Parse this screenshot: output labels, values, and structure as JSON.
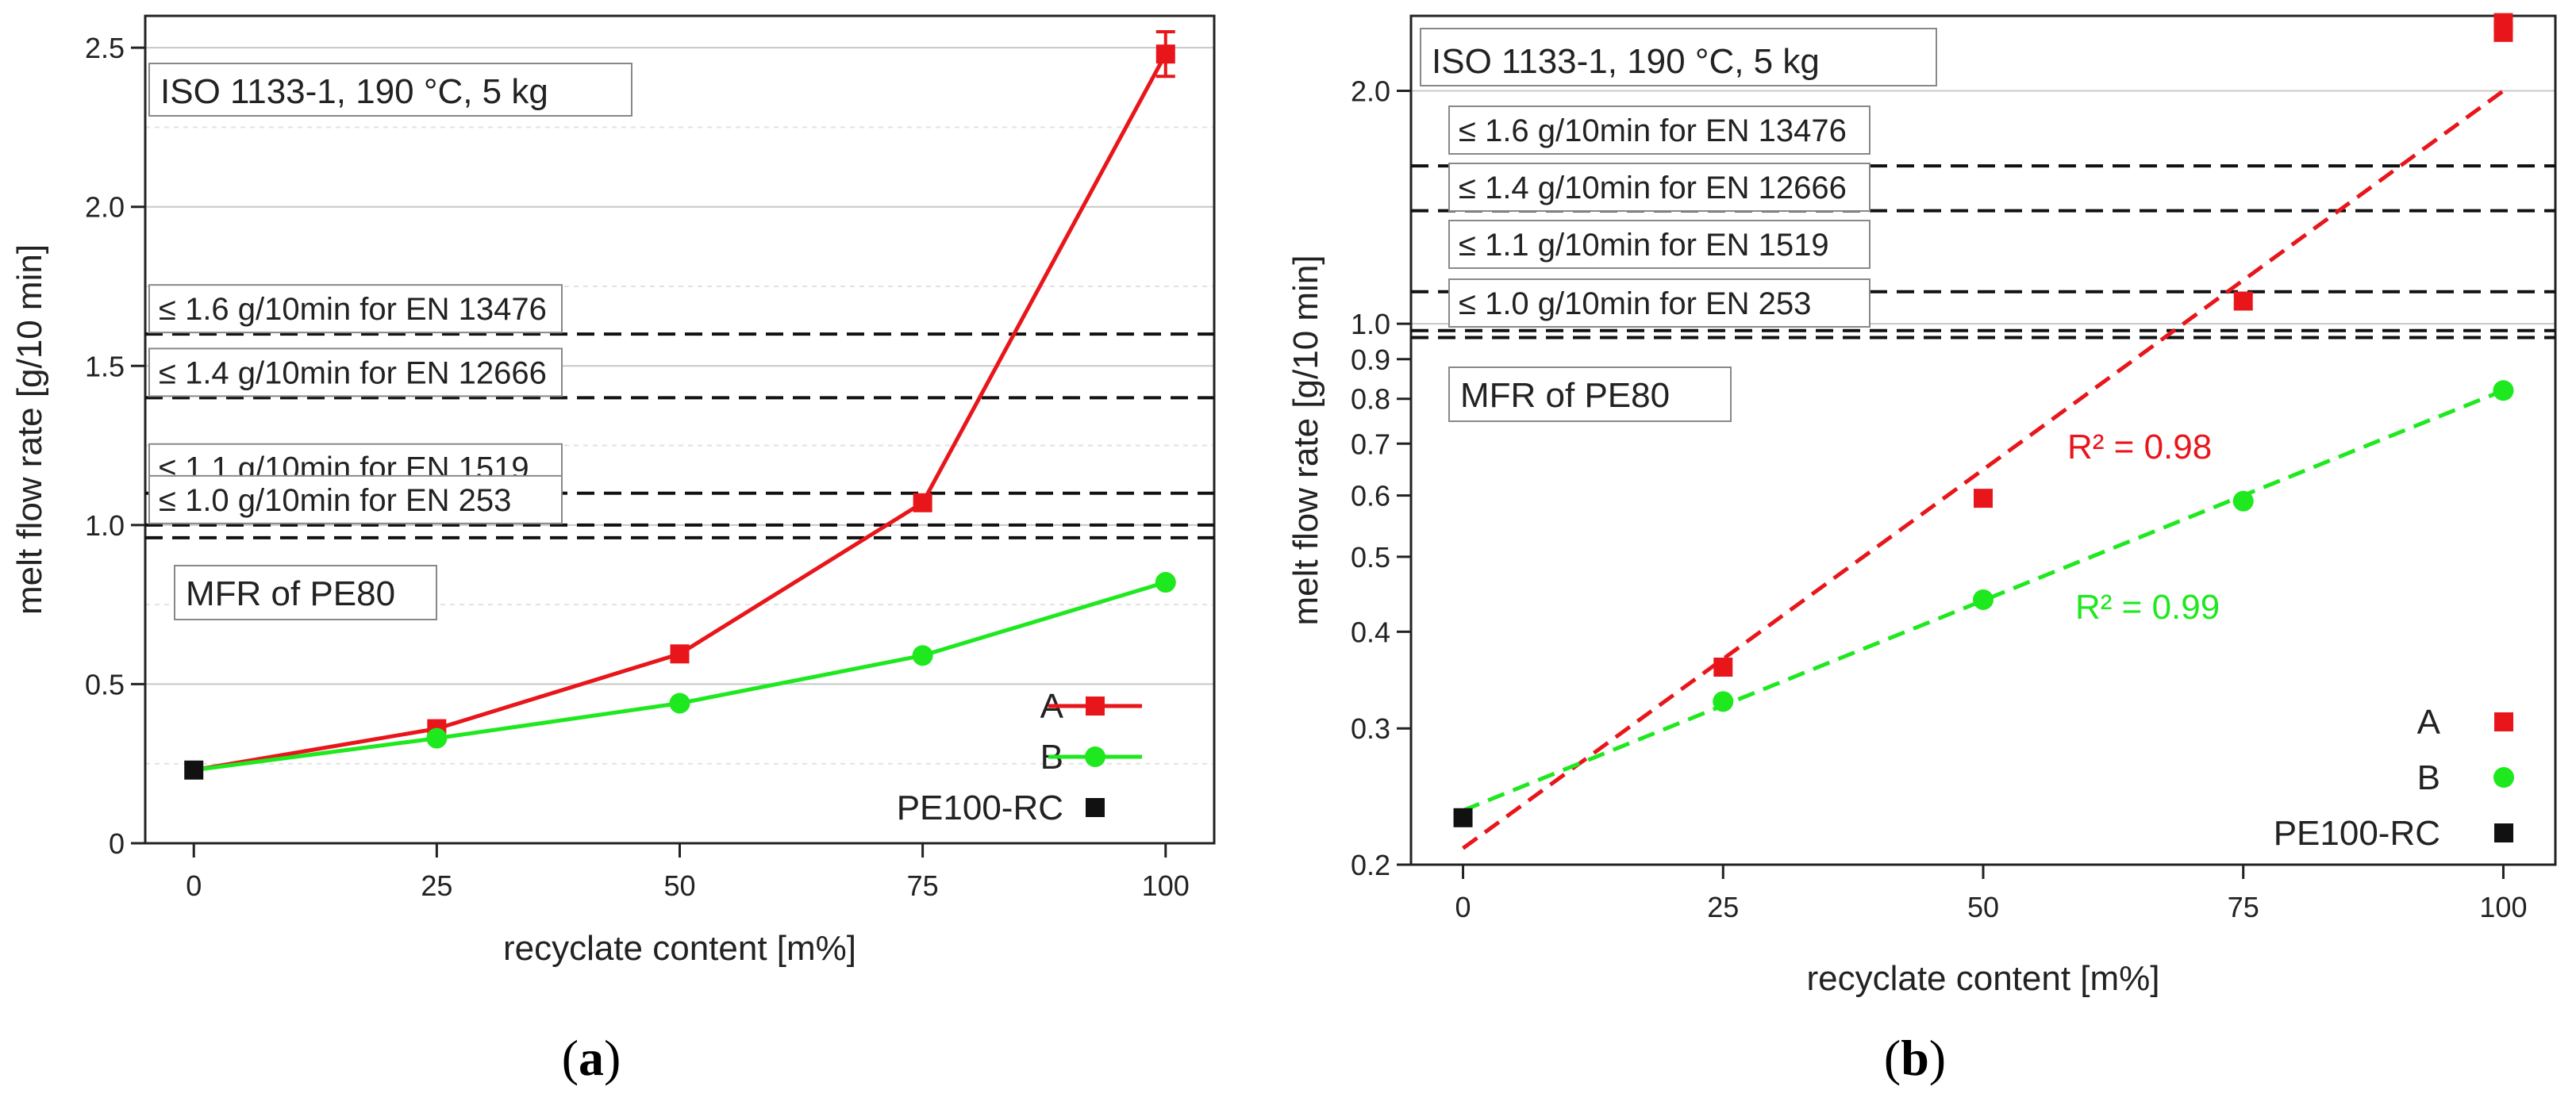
{
  "chart_data": [
    {
      "panel": "a",
      "caption": {
        "open": "(",
        "letter": "a",
        "close": ")"
      },
      "type": "line",
      "scale": "linear",
      "annotation": "ISO 1133-1, 190 °C, 5 kg",
      "xlabel": "recyclate content [m%]",
      "ylabel": "melt flow rate [g/10 min]",
      "xlim": [
        -5,
        105
      ],
      "ylim": [
        0,
        2.6
      ],
      "xticks": [
        0,
        25,
        50,
        75,
        100
      ],
      "yticks": [
        0,
        0.5,
        1.0,
        1.5,
        2.0,
        2.5
      ],
      "ytick_labels": [
        "0",
        "0.5",
        "1.0",
        "1.5",
        "2.0",
        "2.5"
      ],
      "minor_grid": [
        0.25,
        0.75,
        1.25,
        1.75,
        2.25
      ],
      "series": [
        {
          "name": "A",
          "color": "#e8161b",
          "marker": "square",
          "line": "solid",
          "x": [
            25,
            50,
            75,
            100
          ],
          "y": [
            0.36,
            0.595,
            1.07,
            2.48
          ],
          "yerr": [
            0,
            0,
            0,
            0.07
          ]
        },
        {
          "name": "B",
          "color": "#1ee81e",
          "marker": "circle",
          "line": "solid",
          "x": [
            25,
            50,
            75,
            100
          ],
          "y": [
            0.33,
            0.44,
            0.59,
            0.82
          ],
          "yerr": [
            0,
            0,
            0,
            0
          ]
        },
        {
          "name": "PE100-RC",
          "color": "#111111",
          "marker": "square",
          "line": "none",
          "x": [
            0
          ],
          "y": [
            0.23
          ],
          "yerr": [
            0
          ]
        }
      ],
      "line_origin": {
        "x": 0,
        "y": 0.23
      },
      "hlines": [
        {
          "y": 1.6,
          "label": "≤ 1.6 g/10min for EN 13476"
        },
        {
          "y": 1.4,
          "label": "≤ 1.4 g/10min for EN 12666"
        },
        {
          "y": 1.1,
          "label": "≤ 1.1 g/10min for EN 1519"
        },
        {
          "y": 1.0,
          "label": "≤ 1.0 g/10min for EN 253"
        },
        {
          "y": 0.96,
          "label": ""
        }
      ],
      "pe80_label": "MFR of PE80",
      "legend_position": "bottom-right"
    },
    {
      "panel": "b",
      "caption": {
        "open": "(",
        "letter": "b",
        "close": ")"
      },
      "type": "scatter",
      "scale": "log",
      "annotation": "ISO 1133-1, 190 °C, 5 kg",
      "xlabel": "recyclate content [m%]",
      "ylabel": "melt flow rate [g/10 min]",
      "xlim": [
        -5,
        105
      ],
      "ylim": [
        0.2,
        2.5
      ],
      "xticks": [
        0,
        25,
        50,
        75,
        100
      ],
      "yticks": [
        0.2,
        0.3,
        0.4,
        0.5,
        0.6,
        0.7,
        0.8,
        0.9,
        1.0,
        2.0
      ],
      "ytick_labels": [
        "0.2",
        "0.3",
        "0.4",
        "0.5",
        "0.6",
        "0.7",
        "0.8",
        "0.9",
        "1.0",
        "2.0"
      ],
      "grid_lines": [
        1.0,
        2.0
      ],
      "series": [
        {
          "name": "A",
          "color": "#e8161b",
          "marker": "square",
          "x": [
            25,
            50,
            75,
            100
          ],
          "y": [
            0.36,
            0.595,
            1.07,
            2.38
          ]
        },
        {
          "name": "B",
          "color": "#1ee81e",
          "marker": "circle",
          "x": [
            25,
            50,
            75,
            100
          ],
          "y": [
            0.325,
            0.44,
            0.59,
            0.82
          ]
        },
        {
          "name": "PE100-RC",
          "color": "#111111",
          "marker": "square",
          "x": [
            0
          ],
          "y": [
            0.23
          ]
        }
      ],
      "extra_points": [
        {
          "series": "A",
          "x": 100,
          "y": 2.45
        }
      ],
      "fits": [
        {
          "series": "A",
          "color": "#e8161b",
          "x": [
            0,
            100
          ],
          "y": [
            0.21,
            2.0
          ],
          "r2": "R² = 0.98"
        },
        {
          "series": "B",
          "color": "#1ee81e",
          "x": [
            0,
            100
          ],
          "y": [
            0.235,
            0.82
          ],
          "r2": "R² = 0.99"
        }
      ],
      "hlines": [
        {
          "y": 1.6,
          "label": "≤ 1.6 g/10min for EN 13476"
        },
        {
          "y": 1.4,
          "label": "≤ 1.4 g/10min for EN 12666"
        },
        {
          "y": 1.1,
          "label": "≤ 1.1 g/10min for EN 1519"
        },
        {
          "y": 0.98,
          "label": "≤ 1.0 g/10min for EN 253"
        },
        {
          "y": 0.96,
          "label": ""
        }
      ],
      "pe80_label": "MFR of PE80",
      "legend_position": "bottom-right"
    }
  ]
}
